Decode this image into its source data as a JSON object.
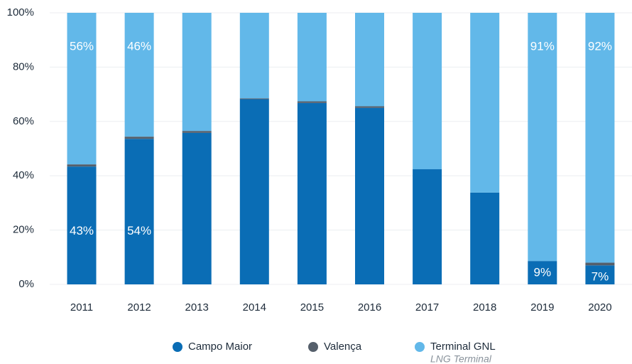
{
  "chart_data": {
    "type": "stacked_bar",
    "categories": [
      "2011",
      "2012",
      "2013",
      "2014",
      "2015",
      "2016",
      "2017",
      "2018",
      "2019",
      "2020"
    ],
    "series": [
      {
        "name": "Campo Maior",
        "color": "#0a6db5",
        "values": [
          43.4,
          53.6,
          55.8,
          68.2,
          66.8,
          65.0,
          42.4,
          33.8,
          8.6,
          7.0
        ],
        "value_labels": [
          "43%",
          "54%",
          null,
          null,
          null,
          null,
          null,
          null,
          "9%",
          "7%"
        ]
      },
      {
        "name": "Valença",
        "color": "#555f6b",
        "values": [
          0.8,
          0.8,
          0.7,
          0.3,
          0.6,
          0.6,
          0,
          0,
          0,
          1.0
        ]
      },
      {
        "name": "Terminal GNL",
        "note": "LNG Terminal",
        "color": "#62b8e9",
        "values": [
          55.8,
          45.6,
          43.5,
          31.5,
          32.6,
          34.4,
          57.6,
          66.2,
          91.4,
          92.0
        ],
        "value_labels": [
          "56%",
          "46%",
          null,
          null,
          null,
          null,
          null,
          null,
          "91%",
          "92%"
        ]
      }
    ],
    "ylim": [
      0,
      100
    ],
    "yticks": [
      {
        "value": 0,
        "label": "0%"
      },
      {
        "value": 20,
        "label": "20%"
      },
      {
        "value": 40,
        "label": "40%"
      },
      {
        "value": 60,
        "label": "60%"
      },
      {
        "value": 80,
        "label": "80%"
      },
      {
        "value": 100,
        "label": "100%"
      }
    ],
    "grid": true
  }
}
